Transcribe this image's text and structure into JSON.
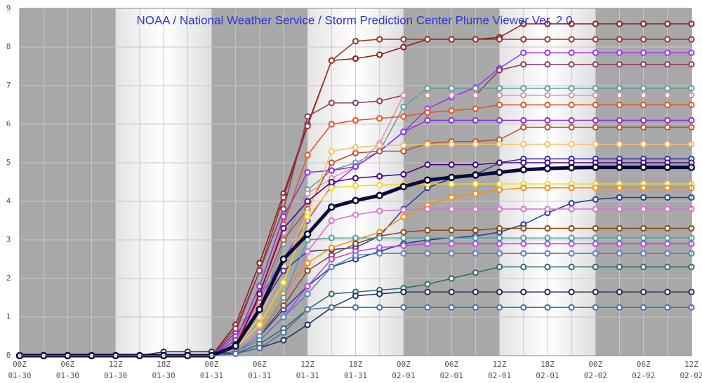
{
  "chart_data": {
    "type": "line",
    "title": "NOAA / National Weather Service / Storm Prediction Center Plume Viewer Ver. 2.0",
    "categories": [
      [
        "00Z",
        "01-30"
      ],
      null,
      [
        "06Z",
        "01-30"
      ],
      null,
      [
        "12Z",
        "01-30"
      ],
      null,
      [
        "18Z",
        "01-30"
      ],
      null,
      [
        "00Z",
        "01-31"
      ],
      null,
      [
        "06Z",
        "01-31"
      ],
      null,
      [
        "12Z",
        "01-31"
      ],
      null,
      [
        "18Z",
        "01-31"
      ],
      null,
      [
        "00Z",
        "02-01"
      ],
      null,
      [
        "06Z",
        "02-01"
      ],
      null,
      [
        "12Z",
        "02-01"
      ],
      null,
      [
        "18Z",
        "02-01"
      ],
      null,
      [
        "00Z",
        "02-02"
      ],
      null,
      [
        "06Z",
        "02-02"
      ],
      null,
      [
        "12Z",
        "02-02"
      ]
    ],
    "ylim": [
      0,
      9
    ],
    "yticks": [
      0,
      1,
      2,
      3,
      4,
      5,
      6,
      7,
      8,
      9
    ],
    "grid": true,
    "line_width": 1.5,
    "series": [
      {
        "color": "#8b1a1a",
        "values": [
          0,
          0,
          0,
          0,
          0,
          0,
          0,
          0,
          0,
          0.8,
          2.4,
          4.2,
          6.0,
          7.65,
          7.7,
          7.8,
          8.0,
          8.2,
          8.2,
          8.2,
          8.25,
          8.6,
          8.6,
          8.6,
          8.6,
          8.6,
          8.6,
          8.6,
          8.6
        ]
      },
      {
        "color": "#a0302a",
        "values": [
          0,
          0,
          0,
          0,
          0,
          0,
          0,
          0,
          0,
          0.6,
          2.2,
          4.1,
          5.95,
          7.65,
          8.15,
          8.2,
          8.2,
          8.2,
          8.2,
          8.2,
          8.2,
          8.2,
          8.2,
          8.2,
          8.2,
          8.2,
          8.2,
          8.2,
          8.2
        ]
      },
      {
        "color": "#9b30ff",
        "values": [
          0,
          0,
          0,
          0,
          0,
          0,
          0,
          0,
          0,
          0.5,
          1.5,
          2.5,
          3.5,
          4.4,
          4.9,
          5.3,
          5.8,
          6.4,
          6.7,
          6.95,
          7.45,
          7.85,
          7.85,
          7.85,
          7.85,
          7.85,
          7.85,
          7.85,
          7.85
        ]
      },
      {
        "color": "#8b3a62",
        "values": [
          0,
          0,
          0,
          0,
          0,
          0,
          0,
          0,
          0,
          0.7,
          2.2,
          3.8,
          6.2,
          6.55,
          6.55,
          6.6,
          6.75,
          6.75,
          6.75,
          6.75,
          7.4,
          7.55,
          7.55,
          7.55,
          7.55,
          7.55,
          7.55,
          7.55,
          7.55
        ]
      },
      {
        "color": "#5f9ea0",
        "values": [
          0,
          0,
          0,
          0,
          0,
          0,
          0,
          0,
          0,
          0.3,
          1.2,
          2.9,
          4.3,
          4.8,
          5.0,
          5.3,
          6.45,
          6.93,
          6.93,
          6.93,
          6.93,
          6.93,
          6.93,
          6.93,
          6.93,
          6.93,
          6.93,
          6.93,
          6.93
        ]
      },
      {
        "color": "#e090b0",
        "values": [
          0,
          0,
          0,
          0,
          0,
          0,
          0,
          0,
          0,
          0.4,
          1.4,
          3.2,
          4.2,
          4.6,
          4.9,
          5.5,
          6.75,
          6.75,
          6.75,
          6.75,
          6.75,
          6.75,
          6.75,
          6.75,
          6.75,
          6.75,
          6.75,
          6.75,
          6.75
        ]
      },
      {
        "color": "#e8501c",
        "values": [
          0,
          0,
          0,
          0,
          0,
          0,
          0,
          0,
          0,
          0.3,
          1.6,
          3.4,
          5.2,
          6.0,
          6.1,
          6.15,
          6.2,
          6.3,
          6.35,
          6.4,
          6.5,
          6.5,
          6.5,
          6.5,
          6.5,
          6.5,
          6.5,
          6.5,
          6.5
        ]
      },
      {
        "color": "#8a2be2",
        "values": [
          0,
          0,
          0,
          0,
          0,
          0,
          0,
          0,
          0,
          0.4,
          1.8,
          3.6,
          4.75,
          4.8,
          4.9,
          5.3,
          5.8,
          6.1,
          6.1,
          6.1,
          6.1,
          6.1,
          6.1,
          6.1,
          6.1,
          6.1,
          6.1,
          6.1,
          6.1
        ]
      },
      {
        "color": "#c0502a",
        "values": [
          0,
          0,
          0,
          0,
          0,
          0,
          0,
          0,
          0,
          0.3,
          1.5,
          3.0,
          3.8,
          5.0,
          5.25,
          5.3,
          5.3,
          5.5,
          5.55,
          5.55,
          5.6,
          5.92,
          5.92,
          5.92,
          5.92,
          5.92,
          5.92,
          5.92,
          5.92
        ]
      },
      {
        "color": "#f8c060",
        "values": [
          0,
          0,
          0,
          0,
          0,
          0,
          0,
          0,
          0,
          0.2,
          1.0,
          2.3,
          3.7,
          5.3,
          5.4,
          5.45,
          5.45,
          5.48,
          5.48,
          5.48,
          5.48,
          5.48,
          5.48,
          5.48,
          5.48,
          5.48,
          5.48,
          5.48,
          5.48
        ]
      },
      {
        "color": "#2f2f9f",
        "values": [
          0,
          0,
          0,
          0,
          0,
          0,
          0,
          0,
          0,
          0.3,
          1.2,
          2.2,
          2.7,
          2.75,
          2.8,
          3.1,
          3.8,
          4.35,
          4.6,
          4.7,
          5.0,
          5.1,
          5.1,
          5.1,
          5.1,
          5.1,
          5.1,
          5.1,
          5.1
        ]
      },
      {
        "color": "#4b0082",
        "values": [
          0,
          0,
          0,
          0,
          0,
          0,
          0,
          0,
          0,
          0.2,
          1.6,
          3.3,
          4.0,
          4.5,
          4.6,
          4.65,
          4.7,
          4.95,
          4.95,
          4.95,
          5.0,
          5.0,
          5.0,
          5.0,
          5.0,
          5.0,
          5.0,
          5.0,
          5.0
        ]
      },
      {
        "color": "#ffd700",
        "values": [
          0,
          0,
          0,
          0,
          0,
          0,
          0,
          0,
          0,
          0.2,
          0.8,
          1.9,
          3.6,
          4.35,
          4.4,
          4.42,
          4.43,
          4.45,
          4.45,
          4.45,
          4.45,
          4.45,
          4.45,
          4.45,
          4.45,
          4.45,
          4.45,
          4.45,
          4.45
        ]
      },
      {
        "color": "#ff8c00",
        "values": [
          0,
          0,
          0,
          0,
          0,
          0,
          0,
          0,
          0,
          0.1,
          0.6,
          1.6,
          2.4,
          2.8,
          3.0,
          3.2,
          3.6,
          3.9,
          4.1,
          4.2,
          4.3,
          4.35,
          4.35,
          4.35,
          4.35,
          4.35,
          4.35,
          4.35,
          4.35
        ]
      },
      {
        "color": "#1f3f8f",
        "values": [
          0,
          0,
          0,
          0,
          0,
          0,
          0,
          0,
          0,
          0.1,
          0.5,
          1.2,
          1.8,
          2.3,
          2.5,
          2.7,
          2.9,
          3.0,
          3.05,
          3.1,
          3.2,
          3.4,
          3.7,
          3.95,
          4.05,
          4.1,
          4.1,
          4.1,
          4.1
        ]
      },
      {
        "color": "#da70d6",
        "values": [
          0,
          0,
          0,
          0,
          0,
          0,
          0,
          0,
          0,
          0.1,
          0.6,
          1.4,
          2.7,
          3.5,
          3.65,
          3.75,
          3.78,
          3.8,
          3.8,
          3.8,
          3.8,
          3.8,
          3.8,
          3.8,
          3.8,
          3.8,
          3.8,
          3.8,
          3.8
        ]
      },
      {
        "color": "#8b4513",
        "values": [
          0,
          0,
          0,
          0,
          0,
          0,
          0,
          0,
          0,
          0.1,
          0.5,
          1.3,
          2.2,
          2.6,
          2.9,
          3.1,
          3.2,
          3.25,
          3.25,
          3.25,
          3.3,
          3.3,
          3.3,
          3.3,
          3.3,
          3.3,
          3.3,
          3.3,
          3.3
        ]
      },
      {
        "color": "#48a0a0",
        "values": [
          0,
          0,
          0,
          0,
          0,
          0,
          0,
          0,
          0,
          0.1,
          0.5,
          1.5,
          3.0,
          3.05,
          3.05,
          3.05,
          3.05,
          3.05,
          3.05,
          3.05,
          3.05,
          3.05,
          3.05,
          3.05,
          3.05,
          3.05,
          3.05,
          3.05,
          3.05
        ]
      },
      {
        "color": "#c040f0",
        "values": [
          0,
          0,
          0,
          0,
          0,
          0,
          0,
          0,
          0,
          0.1,
          0.4,
          1.0,
          1.8,
          2.5,
          2.7,
          2.8,
          2.85,
          2.9,
          2.9,
          2.9,
          2.9,
          2.9,
          2.9,
          2.9,
          2.9,
          2.9,
          2.9,
          2.9,
          2.9
        ]
      },
      {
        "color": "#5a80c0",
        "values": [
          0,
          0,
          0,
          0,
          0,
          0,
          0,
          0,
          0,
          0.1,
          0.4,
          1.0,
          1.6,
          2.3,
          2.6,
          2.65,
          2.65,
          2.65,
          2.65,
          2.65,
          2.65,
          2.65,
          2.65,
          2.65,
          2.65,
          2.65,
          2.65,
          2.65,
          2.65
        ]
      },
      {
        "color": "#2e6b6b",
        "values": [
          0,
          0,
          0,
          0,
          0,
          0,
          0,
          0,
          0,
          0.05,
          0.3,
          0.7,
          1.2,
          1.6,
          1.65,
          1.7,
          1.75,
          1.85,
          2.0,
          2.15,
          2.3,
          2.3,
          2.3,
          2.3,
          2.3,
          2.3,
          2.3,
          2.3,
          2.3
        ]
      },
      {
        "color": "#1a2f5a",
        "values": [
          0,
          0,
          0,
          0,
          0,
          0,
          0.1,
          0.1,
          0.1,
          0.05,
          0.2,
          0.4,
          0.8,
          1.25,
          1.55,
          1.6,
          1.65,
          1.65,
          1.65,
          1.65,
          1.65,
          1.65,
          1.65,
          1.65,
          1.65,
          1.65,
          1.65,
          1.65,
          1.65
        ]
      },
      {
        "color": "#4a70a0",
        "values": [
          0,
          0,
          0,
          0,
          0,
          0,
          0,
          0,
          0,
          0.05,
          0.2,
          0.6,
          1.2,
          1.25,
          1.25,
          1.25,
          1.25,
          1.25,
          1.25,
          1.25,
          1.25,
          1.25,
          1.25,
          1.25,
          1.25,
          1.25,
          1.25,
          1.25,
          1.25
        ]
      },
      {
        "color": "#0a0a3a",
        "line_width": 5,
        "values": [
          0,
          0,
          0,
          0,
          0,
          0,
          0,
          0,
          0,
          0.25,
          1.2,
          2.5,
          3.15,
          3.85,
          4.02,
          4.15,
          4.38,
          4.55,
          4.62,
          4.68,
          4.75,
          4.82,
          4.85,
          4.87,
          4.88,
          4.88,
          4.88,
          4.88,
          4.88
        ]
      }
    ]
  }
}
